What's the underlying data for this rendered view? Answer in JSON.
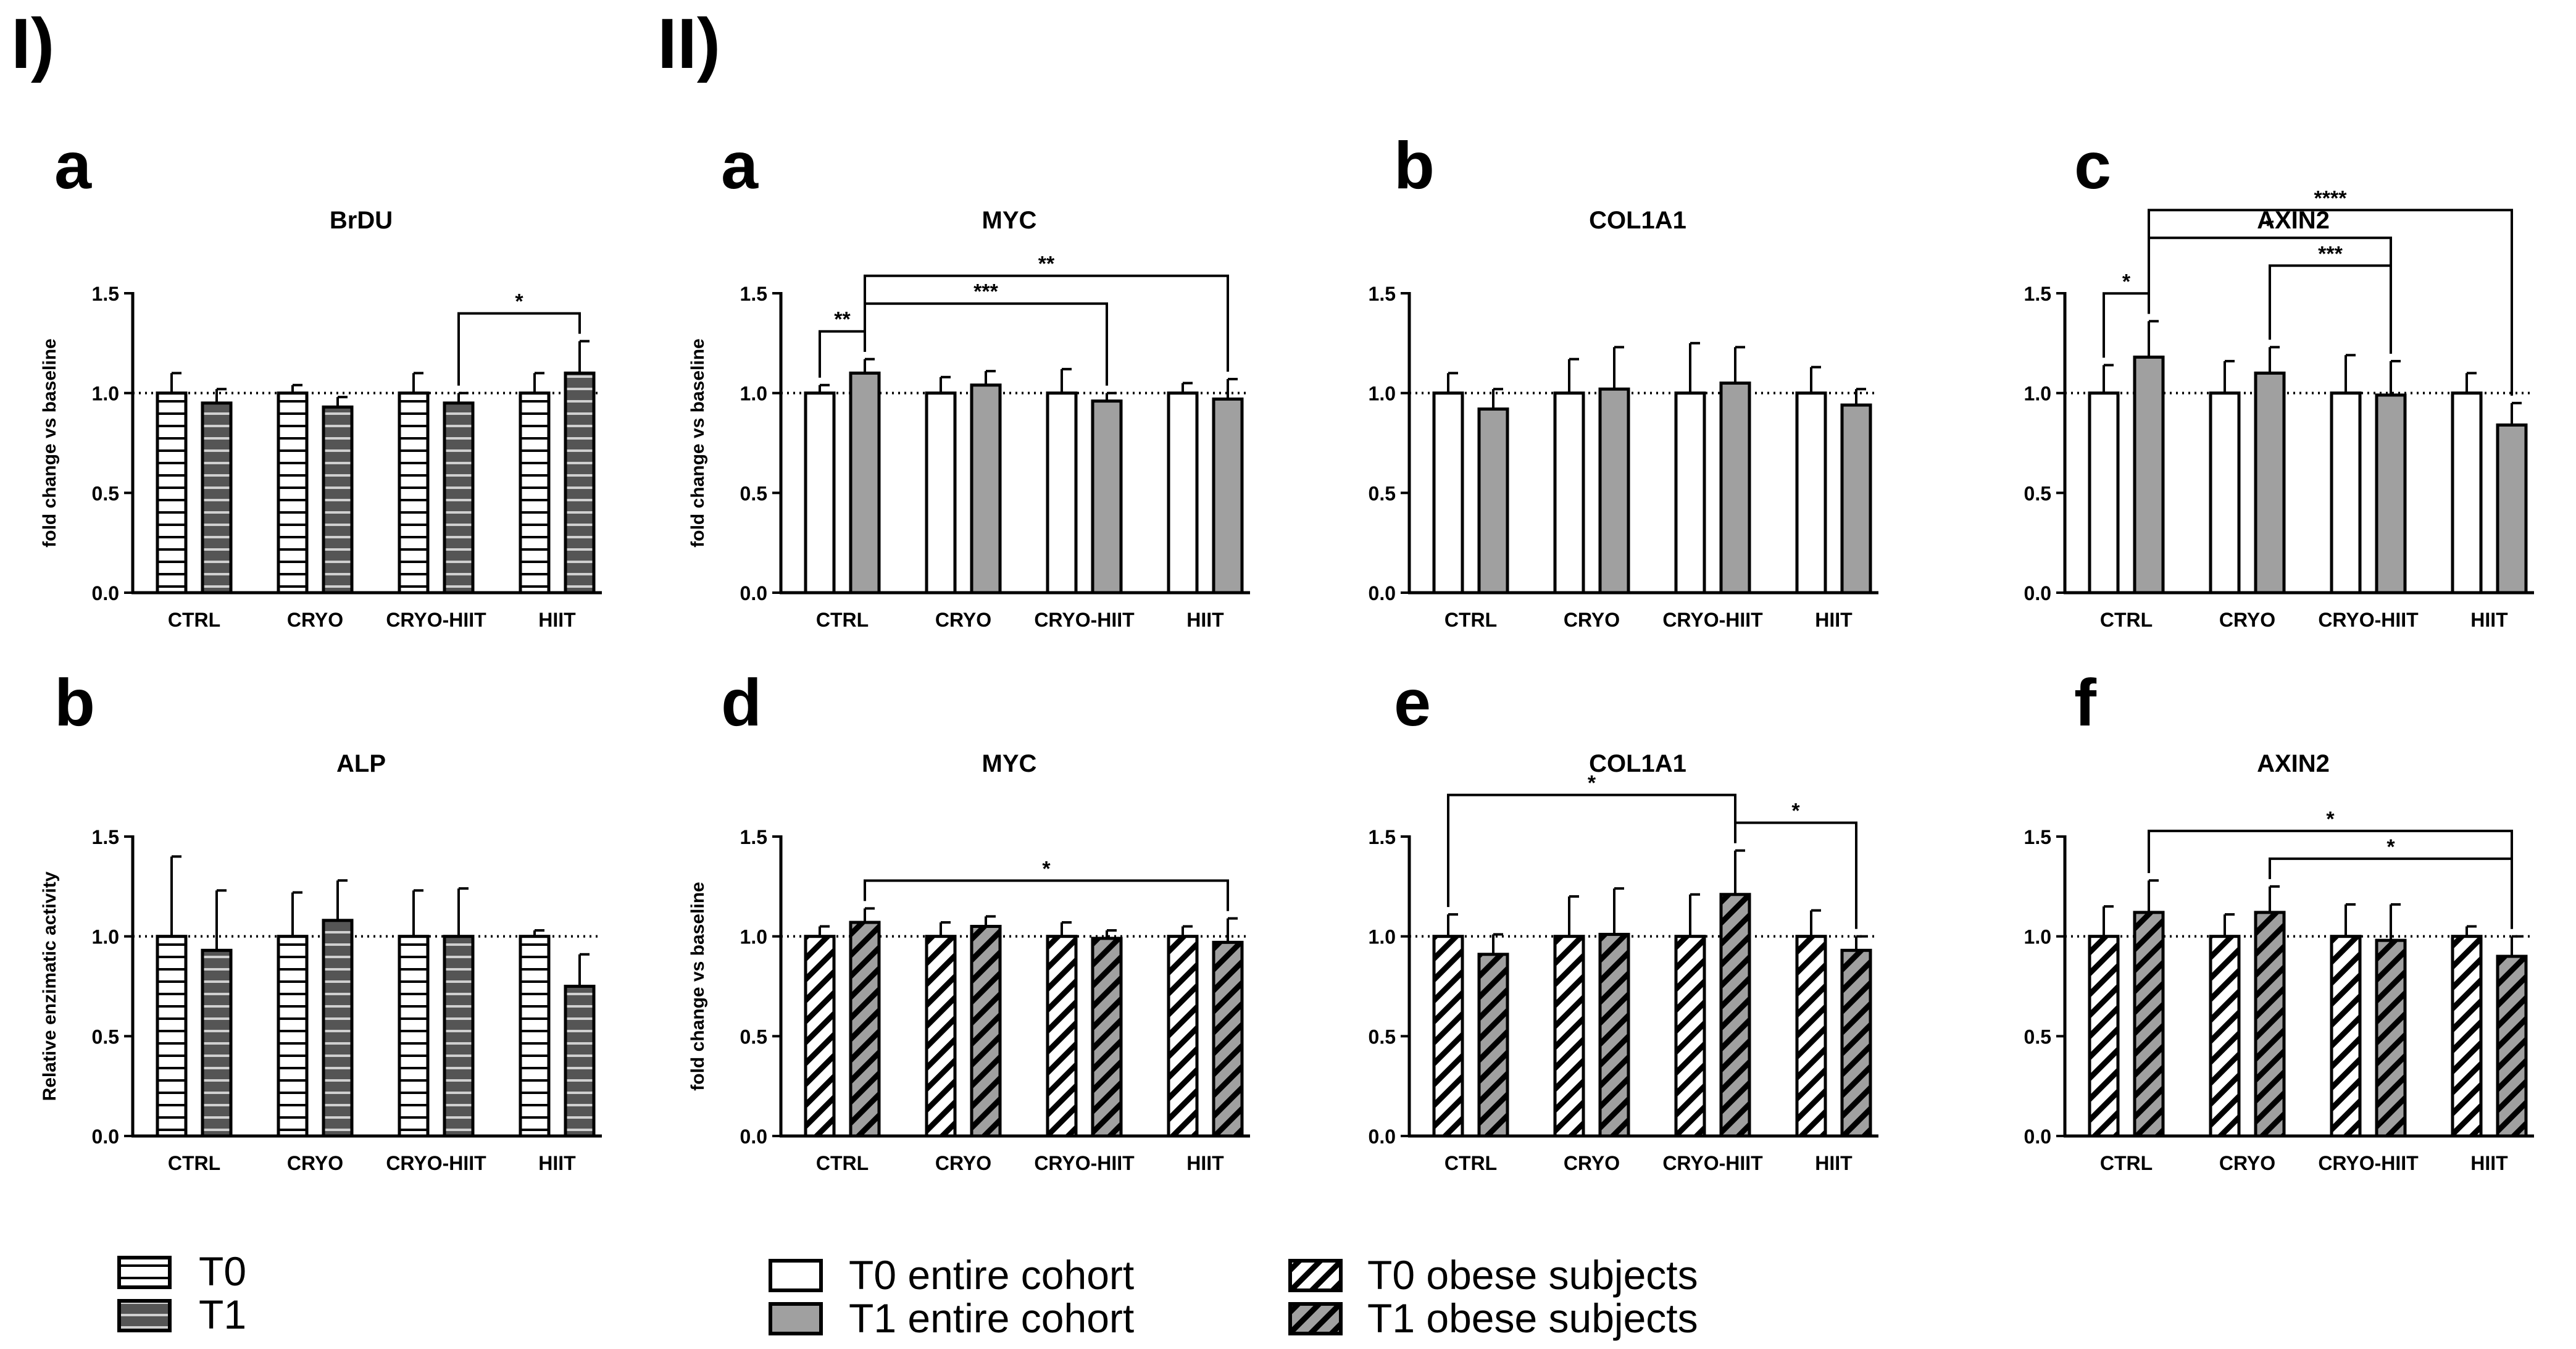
{
  "figure": {
    "section_labels": [
      "I)",
      "II)"
    ],
    "panel_titles": [
      "BrDU",
      "ALP",
      "MYC",
      "COL1A1",
      "AXIN2",
      "MYC",
      "COL1A1",
      "AXIN2"
    ],
    "legend_I": {
      "items": [
        "T0",
        "T1"
      ]
    },
    "legend_II": {
      "items": [
        "T0 entire cohort",
        "T1 entire cohort",
        "T0 obese subjects",
        "T1 obese subjects"
      ]
    }
  },
  "chart_data": [
    {
      "id": "I-a",
      "panel_label": "a",
      "title": "BrDU",
      "type": "bar",
      "pattern": "hstripe",
      "ylabel": "fold change vs baseline",
      "categories": [
        "CTRL",
        "CRYO",
        "CRYO-HIIT",
        "HIIT"
      ],
      "ylim": [
        0,
        1.5
      ],
      "yticks": [
        "0.0",
        "0.5",
        "1.0",
        "1.5"
      ],
      "reference_line": 1.0,
      "series": [
        {
          "values": [
            1.0,
            1.0,
            1.0,
            1.0
          ],
          "errors": [
            0.1,
            0.04,
            0.1,
            0.1
          ]
        },
        {
          "values": [
            0.95,
            0.93,
            0.95,
            1.1
          ],
          "errors": [
            0.07,
            0.05,
            0.05,
            0.16
          ]
        }
      ],
      "significance": [
        {
          "from": [
            2,
            1
          ],
          "to": [
            3,
            1
          ],
          "label": "*"
        }
      ]
    },
    {
      "id": "I-b",
      "panel_label": "b",
      "title": "ALP",
      "type": "bar",
      "pattern": "hstripe",
      "ylabel": "Relative enzimatic activity",
      "categories": [
        "CTRL",
        "CRYO",
        "CRYO-HIIT",
        "HIIT"
      ],
      "ylim": [
        0,
        1.5
      ],
      "yticks": [
        "0.0",
        "0.5",
        "1.0",
        "1.5"
      ],
      "reference_line": 1.0,
      "series": [
        {
          "values": [
            1.0,
            1.0,
            1.0,
            1.0
          ],
          "errors": [
            0.4,
            0.22,
            0.23,
            0.03
          ]
        },
        {
          "values": [
            0.93,
            1.08,
            1.0,
            0.75
          ],
          "errors": [
            0.3,
            0.2,
            0.24,
            0.16
          ]
        }
      ],
      "significance": []
    },
    {
      "id": "II-a",
      "panel_label": "a",
      "title": "MYC",
      "type": "bar",
      "pattern": "solid",
      "ylabel": "fold change vs baseline",
      "categories": [
        "CTRL",
        "CRYO",
        "CRYO-HIIT",
        "HIIT"
      ],
      "ylim": [
        0,
        1.5
      ],
      "yticks": [
        "0.0",
        "0.5",
        "1.0",
        "1.5"
      ],
      "reference_line": 1.0,
      "series": [
        {
          "values": [
            1.0,
            1.0,
            1.0,
            1.0
          ],
          "errors": [
            0.04,
            0.08,
            0.12,
            0.05
          ]
        },
        {
          "values": [
            1.1,
            1.04,
            0.96,
            0.97
          ],
          "errors": [
            0.07,
            0.07,
            0.04,
            0.1
          ]
        }
      ],
      "significance": [
        {
          "from": [
            0,
            0
          ],
          "to": [
            0,
            1
          ],
          "label": "**"
        },
        {
          "from": [
            0,
            1
          ],
          "to": [
            2,
            1
          ],
          "label": "***"
        },
        {
          "from": [
            0,
            1
          ],
          "to": [
            3,
            1
          ],
          "label": "**"
        }
      ]
    },
    {
      "id": "II-b",
      "panel_label": "b",
      "title": "COL1A1",
      "type": "bar",
      "pattern": "solid",
      "ylabel": "",
      "categories": [
        "CTRL",
        "CRYO",
        "CRYO-HIIT",
        "HIIT"
      ],
      "ylim": [
        0,
        1.5
      ],
      "yticks": [
        "0.0",
        "0.5",
        "1.0",
        "1.5"
      ],
      "reference_line": 1.0,
      "series": [
        {
          "values": [
            1.0,
            1.0,
            1.0,
            1.0
          ],
          "errors": [
            0.1,
            0.17,
            0.25,
            0.13
          ]
        },
        {
          "values": [
            0.92,
            1.02,
            1.05,
            0.94
          ],
          "errors": [
            0.1,
            0.21,
            0.18,
            0.08
          ]
        }
      ],
      "significance": []
    },
    {
      "id": "II-c",
      "panel_label": "c",
      "title": "AXIN2",
      "type": "bar",
      "pattern": "solid",
      "ylabel": "",
      "categories": [
        "CTRL",
        "CRYO",
        "CRYO-HIIT",
        "HIIT"
      ],
      "ylim": [
        0,
        1.5
      ],
      "yticks": [
        "0.0",
        "0.5",
        "1.0",
        "1.5"
      ],
      "reference_line": 1.0,
      "series": [
        {
          "values": [
            1.0,
            1.0,
            1.0,
            1.0
          ],
          "errors": [
            0.14,
            0.16,
            0.19,
            0.1
          ]
        },
        {
          "values": [
            1.18,
            1.1,
            0.99,
            0.84
          ],
          "errors": [
            0.18,
            0.13,
            0.17,
            0.11
          ]
        }
      ],
      "significance": [
        {
          "from": [
            0,
            0
          ],
          "to": [
            0,
            1
          ],
          "label": "*"
        },
        {
          "from": [
            0,
            1
          ],
          "to": [
            2,
            1
          ],
          "label": "*"
        },
        {
          "from": [
            1,
            1
          ],
          "to": [
            2,
            1
          ],
          "label": "***"
        },
        {
          "from": [
            0,
            1
          ],
          "to": [
            3,
            1
          ],
          "label": "****"
        }
      ]
    },
    {
      "id": "II-d",
      "panel_label": "d",
      "title": "MYC",
      "type": "bar",
      "pattern": "diag",
      "ylabel": "fold change vs baseline",
      "categories": [
        "CTRL",
        "CRYO",
        "CRYO-HIIT",
        "HIIT"
      ],
      "ylim": [
        0,
        1.5
      ],
      "yticks": [
        "0.0",
        "0.5",
        "1.0",
        "1.5"
      ],
      "reference_line": 1.0,
      "series": [
        {
          "values": [
            1.0,
            1.0,
            1.0,
            1.0
          ],
          "errors": [
            0.05,
            0.07,
            0.07,
            0.05
          ]
        },
        {
          "values": [
            1.07,
            1.05,
            0.99,
            0.97
          ],
          "errors": [
            0.07,
            0.05,
            0.04,
            0.12
          ]
        }
      ],
      "significance": [
        {
          "from": [
            0,
            1
          ],
          "to": [
            3,
            1
          ],
          "label": "*"
        }
      ]
    },
    {
      "id": "II-e",
      "panel_label": "e",
      "title": "COL1A1",
      "type": "bar",
      "pattern": "diag",
      "ylabel": "",
      "categories": [
        "CTRL",
        "CRYO",
        "CRYO-HIIT",
        "HIIT"
      ],
      "ylim": [
        0,
        1.5
      ],
      "yticks": [
        "0.0",
        "0.5",
        "1.0",
        "1.5"
      ],
      "reference_line": 1.0,
      "series": [
        {
          "values": [
            1.0,
            1.0,
            1.0,
            1.0
          ],
          "errors": [
            0.11,
            0.2,
            0.21,
            0.13
          ]
        },
        {
          "values": [
            0.91,
            1.01,
            1.21,
            0.93
          ],
          "errors": [
            0.1,
            0.23,
            0.22,
            0.07
          ]
        }
      ],
      "significance": [
        {
          "from": [
            0,
            0
          ],
          "to": [
            2,
            1
          ],
          "label": "*"
        },
        {
          "from": [
            2,
            1
          ],
          "to": [
            3,
            1
          ],
          "label": "*"
        }
      ]
    },
    {
      "id": "II-f",
      "panel_label": "f",
      "title": "AXIN2",
      "type": "bar",
      "pattern": "diag",
      "ylabel": "",
      "categories": [
        "CTRL",
        "CRYO",
        "CRYO-HIIT",
        "HIIT"
      ],
      "ylim": [
        0,
        1.5
      ],
      "yticks": [
        "0.0",
        "0.5",
        "1.0",
        "1.5"
      ],
      "reference_line": 1.0,
      "series": [
        {
          "values": [
            1.0,
            1.0,
            1.0,
            1.0
          ],
          "errors": [
            0.15,
            0.11,
            0.16,
            0.05
          ]
        },
        {
          "values": [
            1.12,
            1.12,
            0.98,
            0.9
          ],
          "errors": [
            0.16,
            0.13,
            0.18,
            0.1
          ]
        }
      ],
      "significance": [
        {
          "from": [
            0,
            1
          ],
          "to": [
            3,
            1
          ],
          "label": "*"
        },
        {
          "from": [
            1,
            1
          ],
          "to": [
            3,
            1
          ],
          "label": "*"
        }
      ]
    }
  ]
}
